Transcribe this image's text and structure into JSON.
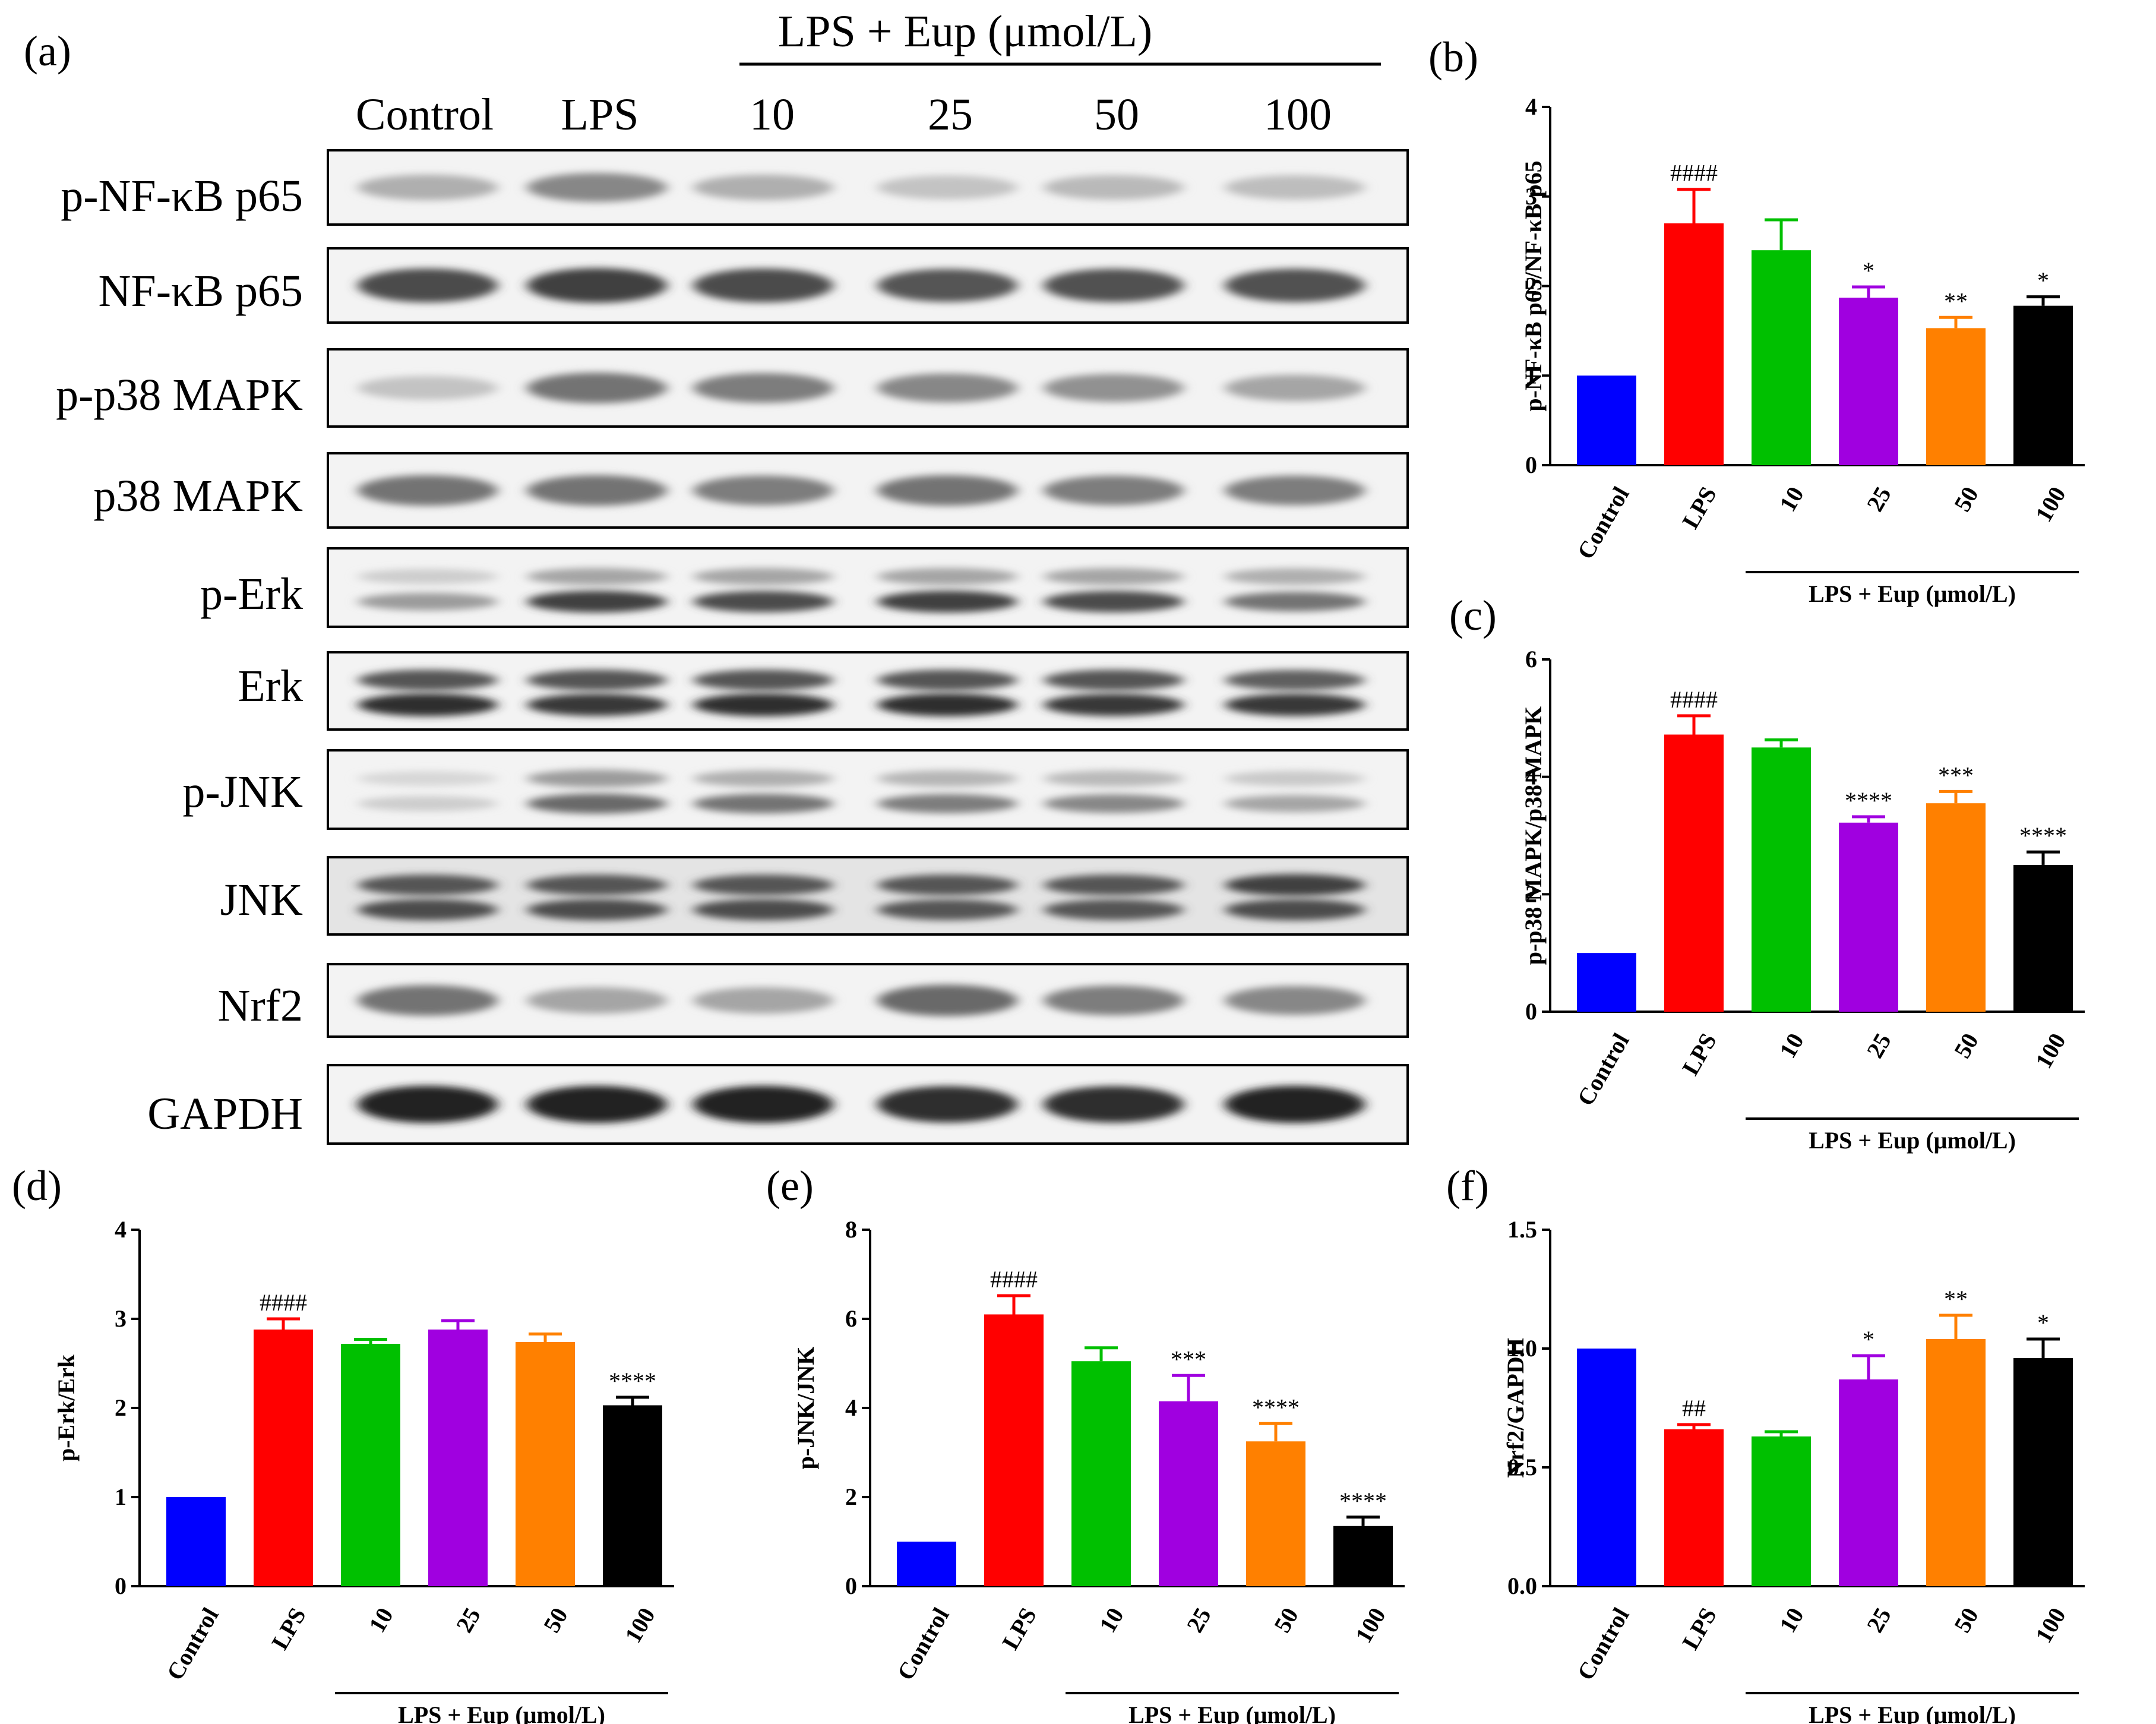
{
  "figure": {
    "panel_letters": [
      "(a)",
      "(b)",
      "(c)",
      "(d)",
      "(e)",
      "(f)"
    ]
  },
  "blot": {
    "group_header": "LPS + Eup (μmol/L)",
    "lanes": [
      "Control",
      "LPS",
      "10",
      "25",
      "50",
      "100"
    ],
    "rows": [
      {
        "label": "p-NF-κB p65",
        "bands": [
          [
            0.25,
            0.45,
            0.25,
            0.15,
            0.2,
            0.18
          ]
        ]
      },
      {
        "label": "NF-κB p65",
        "bands": [
          [
            0.75,
            0.8,
            0.75,
            0.7,
            0.72,
            0.72
          ]
        ]
      },
      {
        "label": "p-p38 MAPK",
        "bands": [
          [
            0.15,
            0.55,
            0.5,
            0.45,
            0.4,
            0.3
          ]
        ]
      },
      {
        "label": "p38 MAPK",
        "bands": [
          [
            0.55,
            0.55,
            0.5,
            0.55,
            0.5,
            0.5
          ]
        ]
      },
      {
        "label": "p-Erk",
        "bands": [
          [
            0.1,
            0.3,
            0.3,
            0.3,
            0.3,
            0.25
          ],
          [
            0.35,
            0.8,
            0.75,
            0.8,
            0.75,
            0.55
          ]
        ]
      },
      {
        "label": "Erk",
        "bands": [
          [
            0.7,
            0.7,
            0.7,
            0.7,
            0.7,
            0.65
          ],
          [
            0.9,
            0.85,
            0.9,
            0.9,
            0.85,
            0.85
          ]
        ]
      },
      {
        "label": "p-JNK",
        "bands": [
          [
            0.05,
            0.35,
            0.25,
            0.22,
            0.2,
            0.12
          ],
          [
            0.1,
            0.6,
            0.55,
            0.5,
            0.45,
            0.3
          ]
        ]
      },
      {
        "label": "JNK",
        "bands": [
          [
            0.7,
            0.7,
            0.7,
            0.7,
            0.7,
            0.8
          ],
          [
            0.75,
            0.75,
            0.75,
            0.7,
            0.7,
            0.75
          ]
        ]
      },
      {
        "label": "Nrf2",
        "bands": [
          [
            0.55,
            0.3,
            0.3,
            0.6,
            0.5,
            0.45
          ]
        ]
      },
      {
        "label": "GAPDH",
        "bands": [
          [
            0.95,
            0.95,
            0.95,
            0.9,
            0.9,
            0.95
          ]
        ]
      }
    ]
  },
  "chart_data": [
    {
      "panel": "(b)",
      "type": "bar",
      "categories": [
        "Control",
        "LPS",
        "10",
        "25",
        "50",
        "100"
      ],
      "values": [
        1.0,
        2.7,
        2.4,
        1.87,
        1.53,
        1.78
      ],
      "errors": [
        0,
        0.38,
        0.34,
        0.12,
        0.12,
        0.1
      ],
      "annotations": [
        "",
        "####",
        "",
        "*",
        "**",
        "*"
      ],
      "colors": [
        "#0000ff",
        "#ff0000",
        "#00c000",
        "#a000e0",
        "#ff8000",
        "#000000"
      ],
      "ylabel": "p-NF-κB p65/NF-κB p65",
      "group_label": "LPS + Eup (μmol/L)",
      "ylim": [
        0,
        4
      ],
      "yticks": [
        "0",
        "1",
        "2",
        "3",
        "4"
      ]
    },
    {
      "panel": "(c)",
      "type": "bar",
      "categories": [
        "Control",
        "LPS",
        "10",
        "25",
        "50",
        "100"
      ],
      "values": [
        1.0,
        4.72,
        4.5,
        3.22,
        3.55,
        2.5
      ],
      "errors": [
        0,
        0.32,
        0.13,
        0.1,
        0.2,
        0.22
      ],
      "annotations": [
        "",
        "####",
        "",
        "****",
        "***",
        "****"
      ],
      "colors": [
        "#0000ff",
        "#ff0000",
        "#00c000",
        "#a000e0",
        "#ff8000",
        "#000000"
      ],
      "ylabel": "p-p38 MAPK/p38 MAPK",
      "group_label": "LPS + Eup (μmol/L)",
      "ylim": [
        0,
        6
      ],
      "yticks": [
        "0",
        "2",
        "4",
        "6"
      ]
    },
    {
      "panel": "(d)",
      "type": "bar",
      "categories": [
        "Control",
        "LPS",
        "10",
        "25",
        "50",
        "100"
      ],
      "values": [
        1.0,
        2.88,
        2.72,
        2.88,
        2.74,
        2.03
      ],
      "errors": [
        0,
        0.12,
        0.05,
        0.1,
        0.09,
        0.09
      ],
      "annotations": [
        "",
        "####",
        "",
        "",
        "",
        "****"
      ],
      "colors": [
        "#0000ff",
        "#ff0000",
        "#00c000",
        "#a000e0",
        "#ff8000",
        "#000000"
      ],
      "ylabel": "p-Erk/Erk",
      "group_label": "LPS + Eup (μmol/L)",
      "ylim": [
        0,
        4
      ],
      "yticks": [
        "0",
        "1",
        "2",
        "3",
        "4"
      ]
    },
    {
      "panel": "(e)",
      "type": "bar",
      "categories": [
        "Control",
        "LPS",
        "10",
        "25",
        "50",
        "100"
      ],
      "values": [
        1.0,
        6.1,
        5.05,
        4.15,
        3.25,
        1.35
      ],
      "errors": [
        0,
        0.42,
        0.3,
        0.58,
        0.4,
        0.2
      ],
      "annotations": [
        "",
        "####",
        "",
        "***",
        "****",
        "****"
      ],
      "colors": [
        "#0000ff",
        "#ff0000",
        "#00c000",
        "#a000e0",
        "#ff8000",
        "#000000"
      ],
      "ylabel": "p-JNK/JNK",
      "group_label": "LPS + Eup (μmol/L)",
      "ylim": [
        0,
        8
      ],
      "yticks": [
        "0",
        "2",
        "4",
        "6",
        "8"
      ]
    },
    {
      "panel": "(f)",
      "type": "bar",
      "categories": [
        "Control",
        "LPS",
        "10",
        "25",
        "50",
        "100"
      ],
      "values": [
        1.0,
        0.66,
        0.63,
        0.87,
        1.04,
        0.96
      ],
      "errors": [
        0,
        0.02,
        0.02,
        0.1,
        0.1,
        0.08
      ],
      "annotations": [
        "",
        "##",
        "",
        "*",
        "**",
        "*"
      ],
      "colors": [
        "#0000ff",
        "#ff0000",
        "#00c000",
        "#a000e0",
        "#ff8000",
        "#000000"
      ],
      "ylabel": "Nrf2/GAPDH",
      "group_label": "LPS + Eup (μmol/L)",
      "ylim": [
        0,
        1.5
      ],
      "yticks": [
        "0.0",
        "0.5",
        "1.0",
        "1.5"
      ]
    }
  ]
}
